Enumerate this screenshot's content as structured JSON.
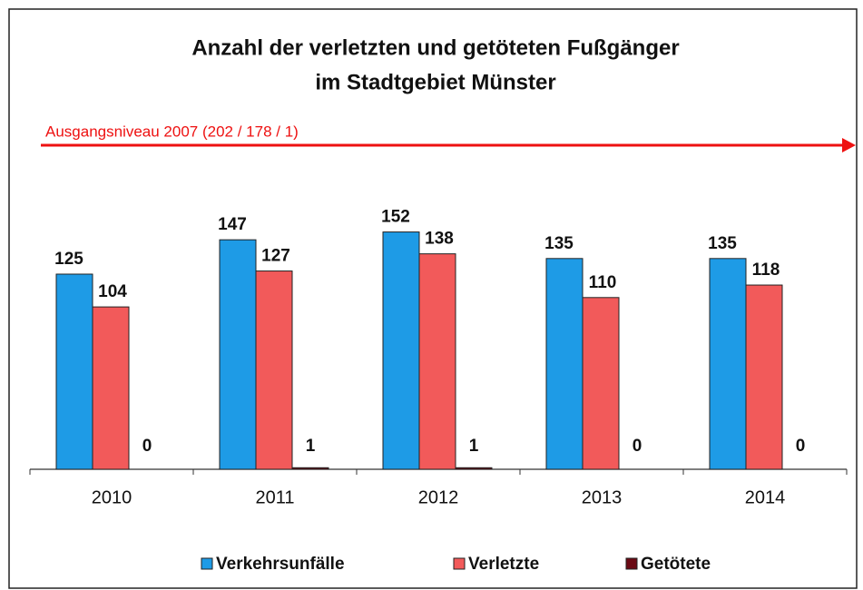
{
  "chart_data": {
    "type": "bar",
    "title": [
      "Anzahl der verletzten und getöteten Fußgänger",
      "im Stadtgebiet Münster"
    ],
    "annotation": "Ausgangsniveau  2007  (202 / 178 / 1)",
    "categories": [
      "2010",
      "2011",
      "2012",
      "2013",
      "2014"
    ],
    "series": [
      {
        "name": "Verkehrsunfälle",
        "color": "#1e9be6",
        "values": [
          125,
          147,
          152,
          135,
          135
        ]
      },
      {
        "name": "Verletzte",
        "color": "#f25a5a",
        "values": [
          104,
          127,
          138,
          110,
          118
        ]
      },
      {
        "name": "Getötete",
        "color": "#6b0a14",
        "values": [
          0,
          1,
          1,
          0,
          0
        ]
      }
    ],
    "legend": "bottom"
  }
}
